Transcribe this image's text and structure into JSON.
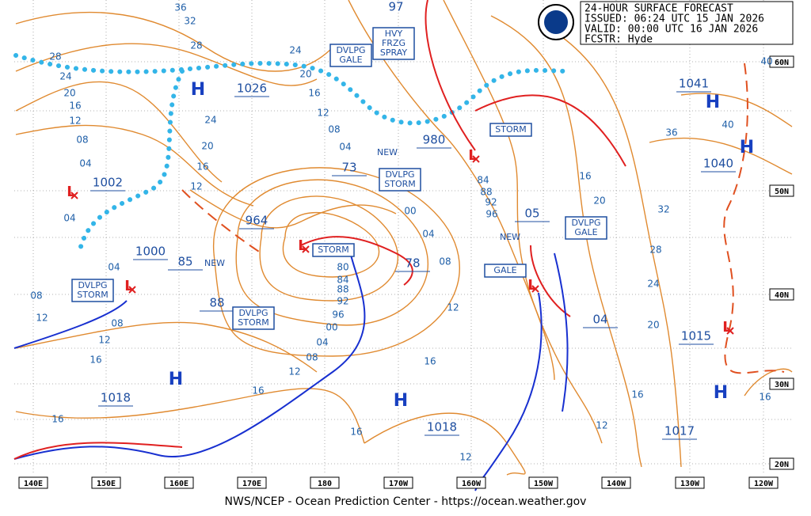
{
  "header": {
    "lines": [
      "24-HOUR SURFACE FORECAST",
      "ISSUED: 06:24 UTC 15 JAN 2026",
      "VALID:  00:00 UTC 16 JAN 2026",
      "FCSTR:  Hyde"
    ]
  },
  "footer": "NWS/NCEP - Ocean Prediction Center - https://ocean.weather.gov",
  "longitude_labels": [
    "140E",
    "150E",
    "160E",
    "170E",
    "180",
    "170W",
    "160W",
    "150W",
    "140W",
    "130W",
    "120W"
  ],
  "latitude_labels": [
    "60N",
    "50N",
    "40N",
    "30N",
    "20N"
  ],
  "high_centers": [
    "H",
    "H",
    "H",
    "H",
    "H",
    "H"
  ],
  "low_centers": [
    "L",
    "L",
    "L",
    "L",
    "L",
    "L"
  ],
  "center_pressures": [
    "1026",
    "1041",
    "1040",
    "1002",
    "1000",
    "85",
    "88",
    "964",
    "73",
    "980",
    "05",
    "78",
    "04",
    "1018",
    "1018",
    "1015",
    "1017",
    "97"
  ],
  "new_labels": [
    "NEW",
    "NEW",
    "NEW"
  ],
  "warnings": [
    {
      "lines": [
        "DVLPG",
        "GALE"
      ]
    },
    {
      "lines": [
        "HVY",
        "FRZG",
        "SPRAY"
      ]
    },
    {
      "lines": [
        "STORM"
      ]
    },
    {
      "lines": [
        "DVLPG",
        "STORM"
      ]
    },
    {
      "lines": [
        "STORM"
      ]
    },
    {
      "lines": [
        "DVLPG",
        "STORM"
      ]
    },
    {
      "lines": [
        "DVLPG",
        "STORM"
      ]
    },
    {
      "lines": [
        "GALE"
      ]
    },
    {
      "lines": [
        "DVLPG",
        "GALE"
      ]
    }
  ],
  "isobar_labels": [
    "36",
    "32",
    "28",
    "24",
    "20",
    "16",
    "12",
    "08",
    "04",
    "04",
    "28",
    "24",
    "20",
    "16",
    "12",
    "08",
    "04",
    "24",
    "20",
    "16",
    "12",
    "00",
    "04",
    "08",
    "12",
    "16",
    "16",
    "16",
    "12",
    "08",
    "04",
    "00",
    "96",
    "92",
    "88",
    "84",
    "80",
    "08",
    "12",
    "08",
    "12",
    "16",
    "04",
    "84",
    "88",
    "92",
    "96",
    "16",
    "20",
    "32",
    "28",
    "24",
    "20",
    "16",
    "12",
    "12",
    "16",
    "16",
    "40",
    "40",
    "36"
  ]
}
